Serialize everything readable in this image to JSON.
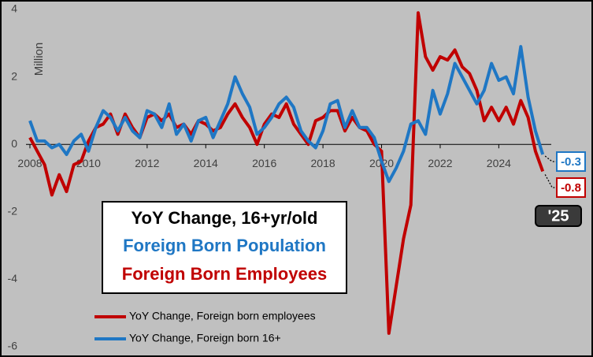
{
  "chart_data": {
    "type": "line",
    "ylabel": "Million",
    "box_lines": [
      "YoY Change, 16+yr/old",
      "Foreign Born Population",
      "Foreign Born Employees"
    ],
    "year_label": "'25",
    "xlim": [
      2008,
      2027
    ],
    "xticks": [
      2008,
      2010,
      2012,
      2014,
      2016,
      2018,
      2020,
      2022,
      2024
    ],
    "ylim": [
      -6,
      4
    ],
    "yticks": [
      4,
      2,
      0,
      -2,
      -4,
      -6
    ],
    "x": [
      2008,
      2008.25,
      2008.5,
      2008.75,
      2009,
      2009.25,
      2009.5,
      2009.75,
      2010,
      2010.25,
      2010.5,
      2010.75,
      2011,
      2011.25,
      2011.5,
      2011.75,
      2012,
      2012.25,
      2012.5,
      2012.75,
      2013,
      2013.25,
      2013.5,
      2013.75,
      2014,
      2014.25,
      2014.5,
      2014.75,
      2015,
      2015.25,
      2015.5,
      2015.75,
      2016,
      2016.25,
      2016.5,
      2016.75,
      2017,
      2017.25,
      2017.5,
      2017.75,
      2018,
      2018.25,
      2018.5,
      2018.75,
      2019,
      2019.25,
      2019.5,
      2019.75,
      2020,
      2020.25,
      2020.5,
      2020.75,
      2021,
      2021.25,
      2021.5,
      2021.75,
      2022,
      2022.25,
      2022.5,
      2022.75,
      2023,
      2023.25,
      2023.5,
      2023.75,
      2024,
      2024.25,
      2024.5,
      2024.75,
      2025,
      2025.25,
      2025.5
    ],
    "series": [
      {
        "name": "YoY Change, Foreign born employees",
        "color": "#c00000",
        "values": [
          0.2,
          -0.2,
          -0.6,
          -1.5,
          -0.9,
          -1.4,
          -0.6,
          -0.5,
          0.1,
          0.5,
          0.6,
          0.9,
          0.3,
          0.9,
          0.5,
          0.2,
          0.8,
          0.9,
          0.7,
          0.9,
          0.5,
          0.6,
          0.3,
          0.7,
          0.6,
          0.4,
          0.5,
          0.9,
          1.2,
          0.8,
          0.5,
          0.0,
          0.6,
          0.9,
          0.8,
          1.2,
          0.6,
          0.3,
          0.0,
          0.7,
          0.8,
          1.0,
          1.0,
          0.4,
          0.8,
          0.5,
          0.4,
          0.0,
          -0.2,
          -5.6,
          -4.2,
          -2.8,
          -1.8,
          3.9,
          2.6,
          2.2,
          2.6,
          2.5,
          2.8,
          2.3,
          2.1,
          1.6,
          0.7,
          1.1,
          0.7,
          1.1,
          0.6,
          1.3,
          0.8,
          -0.2,
          -0.8
        ]
      },
      {
        "name": "YoY Change, Foreign born 16+",
        "color": "#1f77c4",
        "values": [
          0.7,
          0.1,
          0.1,
          -0.1,
          0.0,
          -0.3,
          0.1,
          0.3,
          -0.2,
          0.5,
          1.0,
          0.8,
          0.4,
          0.8,
          0.4,
          0.2,
          1.0,
          0.9,
          0.5,
          1.2,
          0.3,
          0.6,
          0.1,
          0.7,
          0.8,
          0.2,
          0.7,
          1.2,
          2.0,
          1.5,
          1.1,
          0.3,
          0.5,
          0.8,
          1.2,
          1.4,
          1.1,
          0.4,
          0.1,
          -0.1,
          0.4,
          1.2,
          1.3,
          0.5,
          1.0,
          0.5,
          0.5,
          0.2,
          -0.5,
          -1.1,
          -0.7,
          -0.2,
          0.6,
          0.7,
          0.3,
          1.6,
          0.9,
          1.5,
          2.4,
          2.0,
          1.6,
          1.2,
          1.6,
          2.4,
          1.9,
          2.0,
          1.5,
          2.9,
          1.4,
          0.4,
          -0.3
        ]
      }
    ]
  }
}
